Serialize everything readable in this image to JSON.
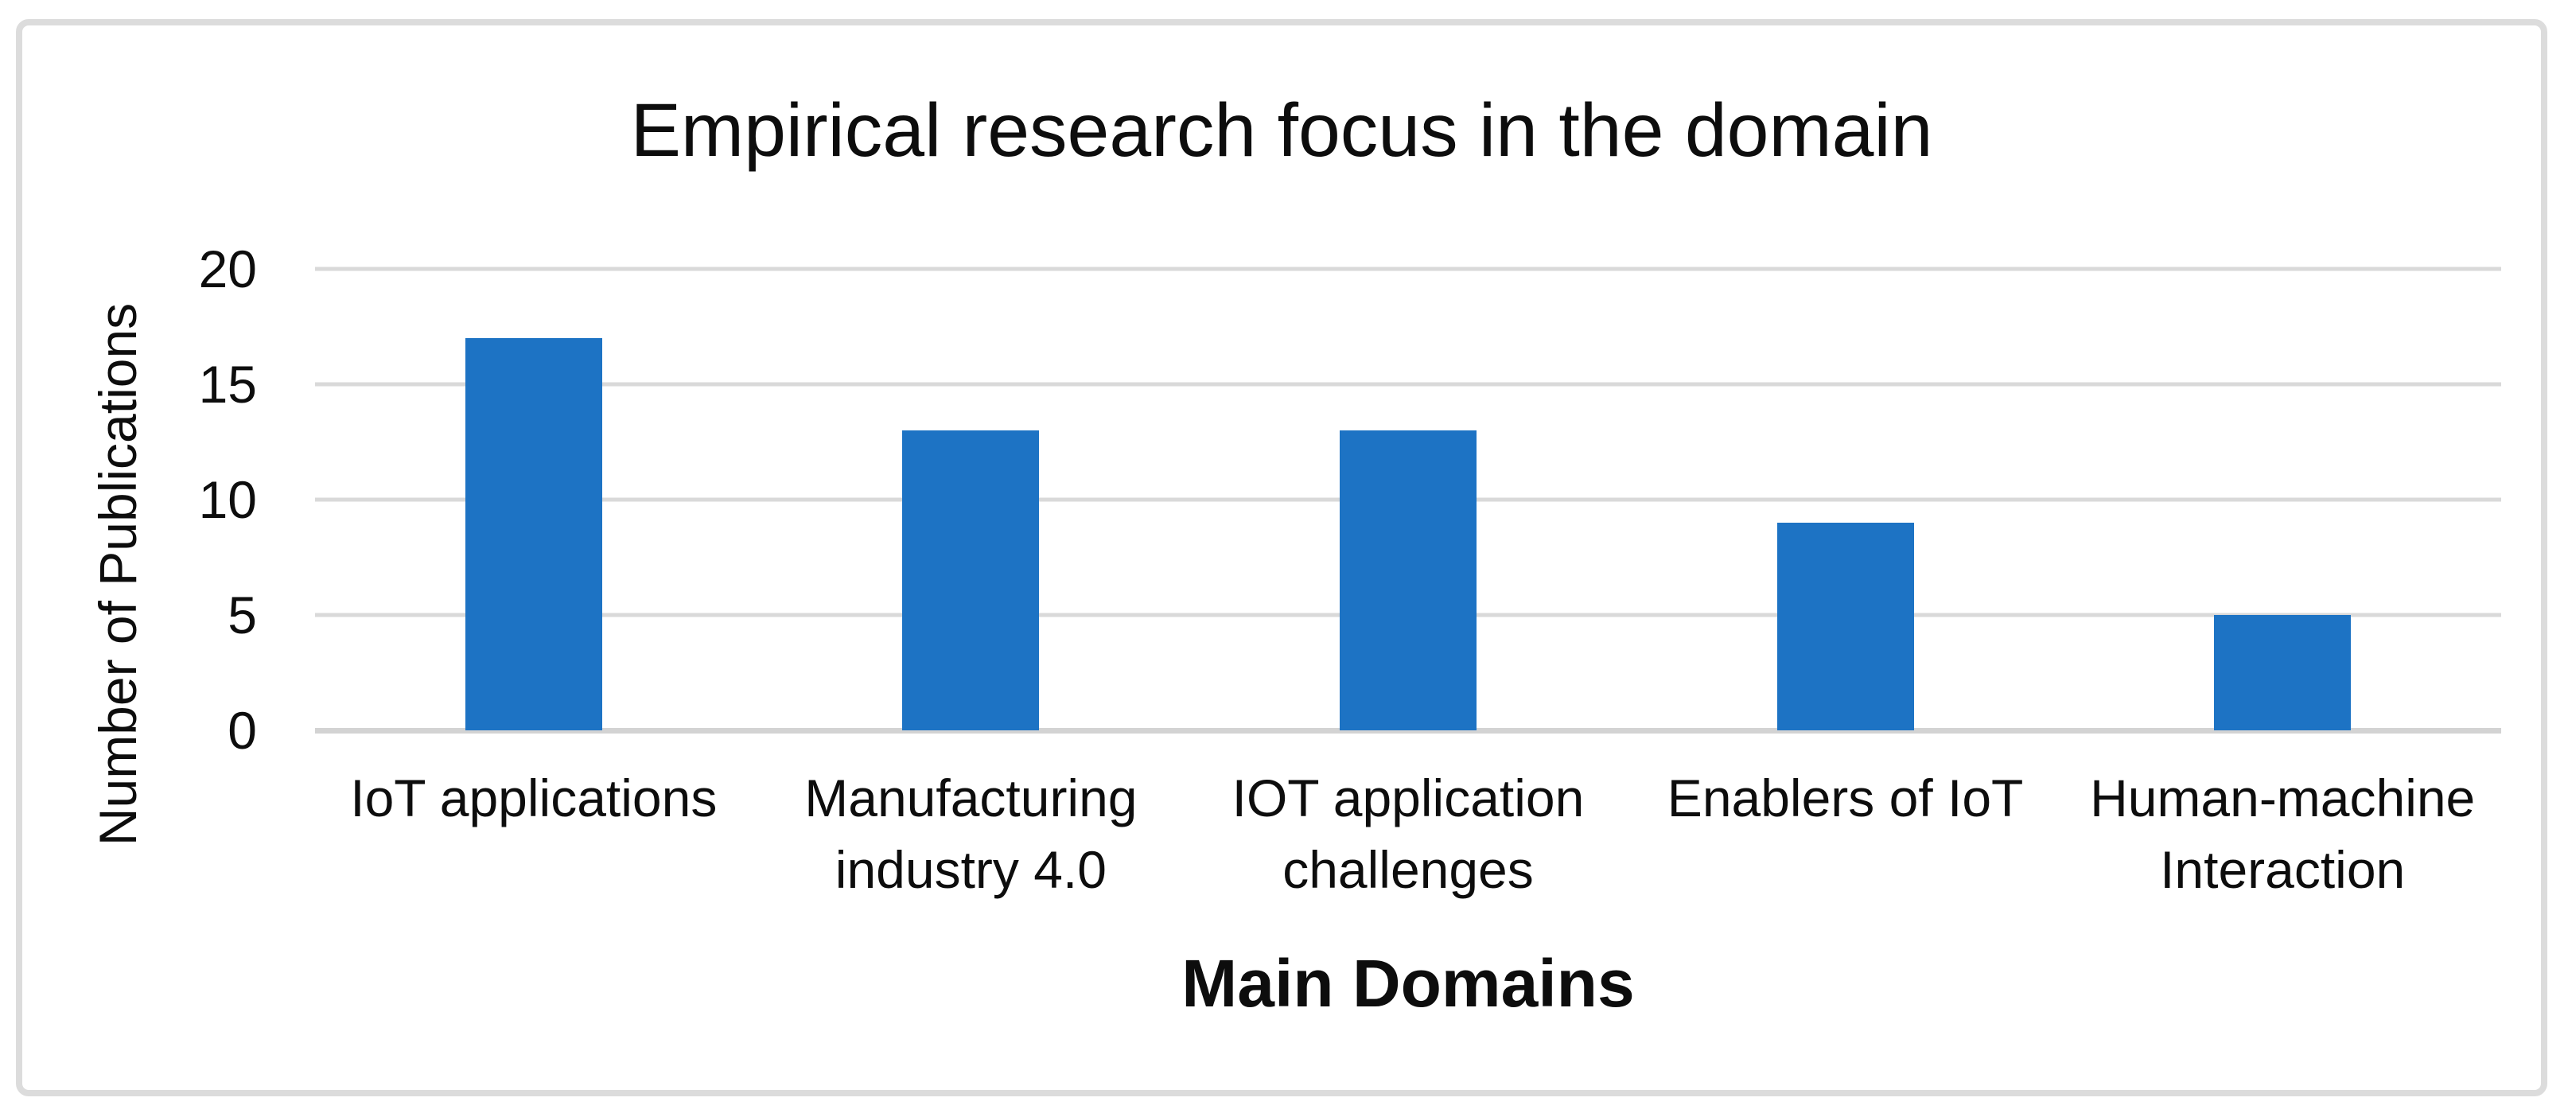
{
  "chart_data": {
    "type": "bar",
    "title": "Empirical research focus in the domain",
    "xlabel": "Main Domains",
    "ylabel": "Number of Publications",
    "categories": [
      "IoT applications",
      "Manufacturing industry 4.0",
      "IOT application challenges",
      "Enablers of IoT",
      "Human-machine Interaction"
    ],
    "values": [
      17,
      13,
      13,
      9,
      5
    ],
    "series_name": "Number of Publications",
    "ylim": [
      0,
      20
    ],
    "yticks": [
      0,
      5,
      10,
      15,
      20
    ],
    "grid": "horizontal-gridlines-on",
    "legend_position": "none",
    "colors": {
      "bar": "#1d73c4",
      "gridline": "#d9d9d9",
      "axis_line": "#d3d3d3",
      "frame_border": "#dcdcdc",
      "text": "#0d0d0d",
      "background": "#ffffff"
    }
  }
}
